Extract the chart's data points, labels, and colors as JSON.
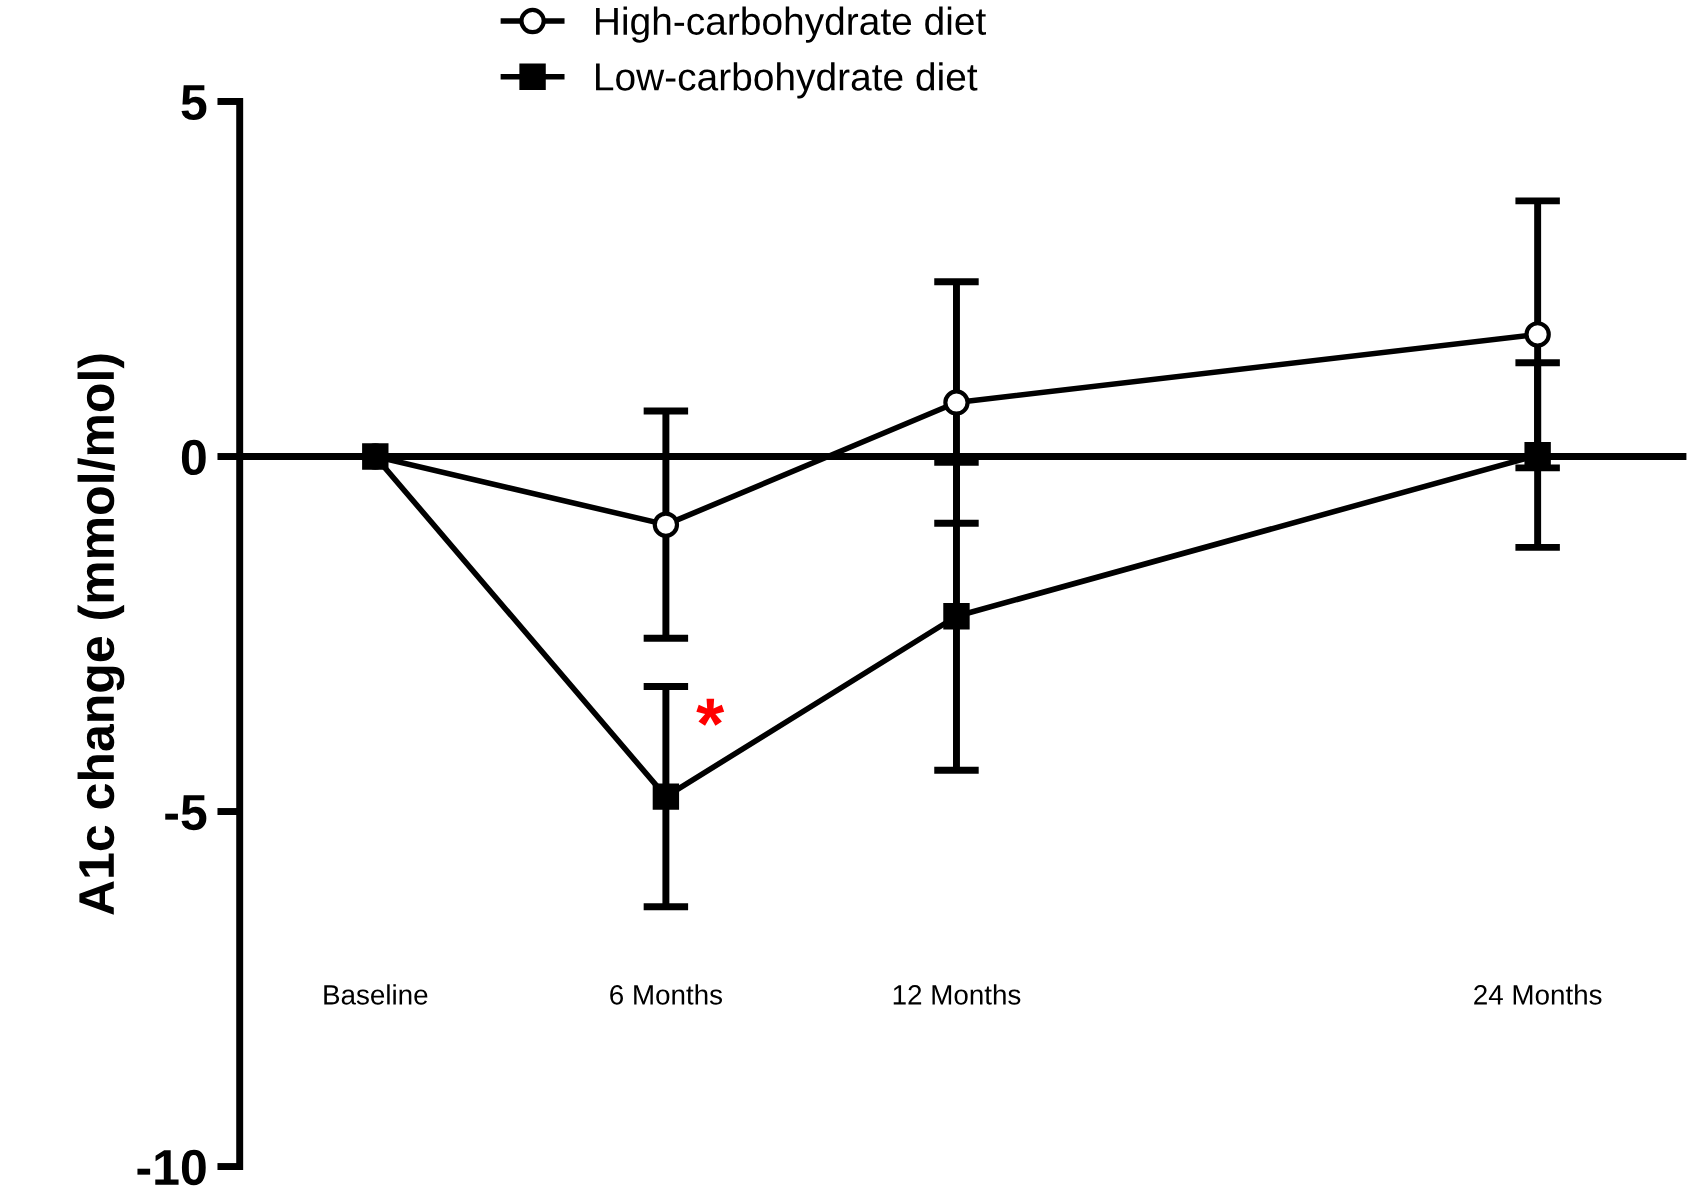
{
  "chart_data": {
    "type": "line",
    "ylabel": "A1c change (mmol/mol)",
    "x": [
      0,
      6,
      12,
      24
    ],
    "xticks": [
      {
        "value": 0,
        "label": "Baseline"
      },
      {
        "value": 6,
        "label": "6 Months"
      },
      {
        "value": 12,
        "label": "12 Months"
      },
      {
        "value": 24,
        "label": "24 Months"
      }
    ],
    "xlim": [
      -2.8,
      27
    ],
    "ylim": [
      -10,
      5
    ],
    "yticks": [
      5,
      0,
      {
        "value": -5,
        "label": "-5"
      },
      {
        "value": -10,
        "label": "-10"
      }
    ],
    "series": [
      {
        "name": "High-carbohydrate diet",
        "color": "#000000",
        "marker": "circle",
        "values": [
          0,
          -0.96,
          0.76,
          1.72
        ],
        "errors": [
          null,
          1.6,
          1.7,
          1.88
        ]
      },
      {
        "name": "Low-carbohydrate diet",
        "color": "#000000",
        "marker": "square",
        "values": [
          0,
          -4.79,
          -2.25,
          0.02
        ],
        "errors": [
          null,
          1.55,
          2.17,
          1.3
        ]
      }
    ],
    "annotations": [
      "*"
    ],
    "legend": "top",
    "line_style": "solid"
  }
}
